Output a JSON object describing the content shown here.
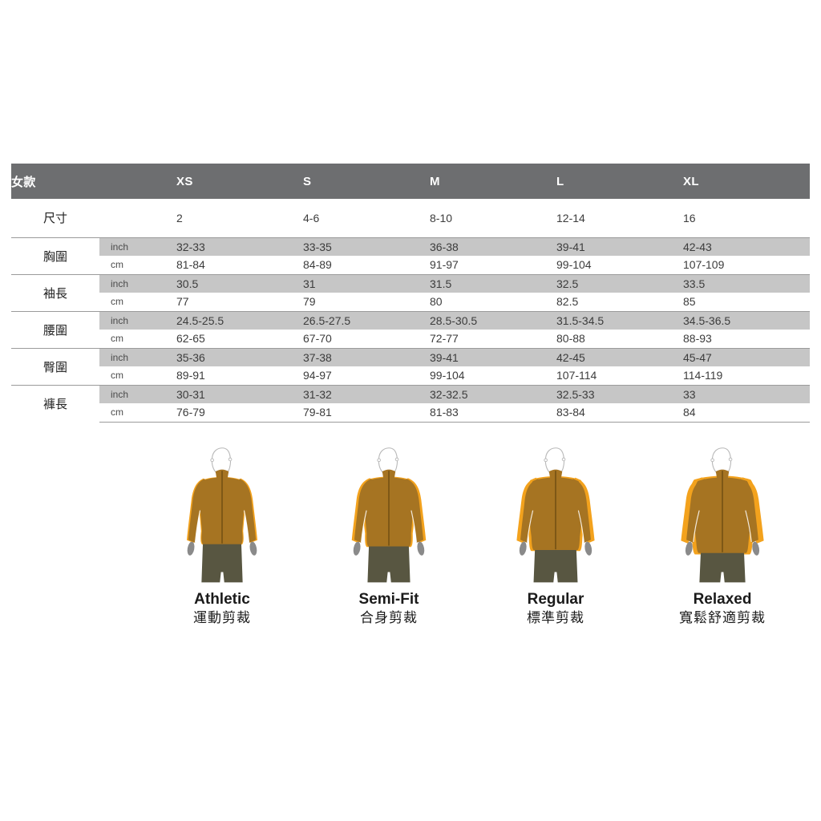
{
  "table": {
    "corner_label": "女款",
    "size_columns": [
      "XS",
      "S",
      "M",
      "L",
      "XL"
    ],
    "size_row": {
      "label": "尺寸",
      "values": [
        "2",
        "4-6",
        "8-10",
        "12-14",
        "16"
      ]
    },
    "unit_inch": "inch",
    "unit_cm": "cm",
    "sections": [
      {
        "label": "胸圍",
        "inch": [
          "32-33",
          "33-35",
          "36-38",
          "39-41",
          "42-43"
        ],
        "cm": [
          "81-84",
          "84-89",
          "91-97",
          "99-104",
          "107-109"
        ]
      },
      {
        "label": "袖長",
        "inch": [
          "30.5",
          "31",
          "31.5",
          "32.5",
          "33.5"
        ],
        "cm": [
          "77",
          "79",
          "80",
          "82.5",
          "85"
        ]
      },
      {
        "label": "腰圍",
        "inch": [
          "24.5-25.5",
          "26.5-27.5",
          "28.5-30.5",
          "31.5-34.5",
          "34.5-36.5"
        ],
        "cm": [
          "62-65",
          "67-70",
          "72-77",
          "80-88",
          "88-93"
        ]
      },
      {
        "label": "臀圍",
        "inch": [
          "35-36",
          "37-38",
          "39-41",
          "42-45",
          "45-47"
        ],
        "cm": [
          "89-91",
          "94-97",
          "99-104",
          "107-114",
          "114-119"
        ]
      },
      {
        "label": "褲長",
        "inch": [
          "30-31",
          "31-32",
          "32-32.5",
          "32.5-33",
          "33"
        ],
        "cm": [
          "76-79",
          "79-81",
          "81-83",
          "83-84",
          "84"
        ]
      }
    ]
  },
  "fits": [
    {
      "name": "Athletic",
      "name_zh": "運動剪裁"
    },
    {
      "name": "Semi-Fit",
      "name_zh": "合身剪裁"
    },
    {
      "name": "Regular",
      "name_zh": "標準剪裁"
    },
    {
      "name": "Relaxed",
      "name_zh": "寬鬆舒適剪裁"
    }
  ],
  "colors": {
    "header_dark": "#28292b",
    "header_gray": "#6d6e70",
    "stripe_gray": "#c6c6c6",
    "divider": "#9b9b9b",
    "jacket": "#a67422",
    "jacket_zipper": "#63450f",
    "fit_highlight": "#f3a21d",
    "hands": "#8a8a8a",
    "pants": "#585641",
    "figure_outline": "#b8b8b8"
  }
}
